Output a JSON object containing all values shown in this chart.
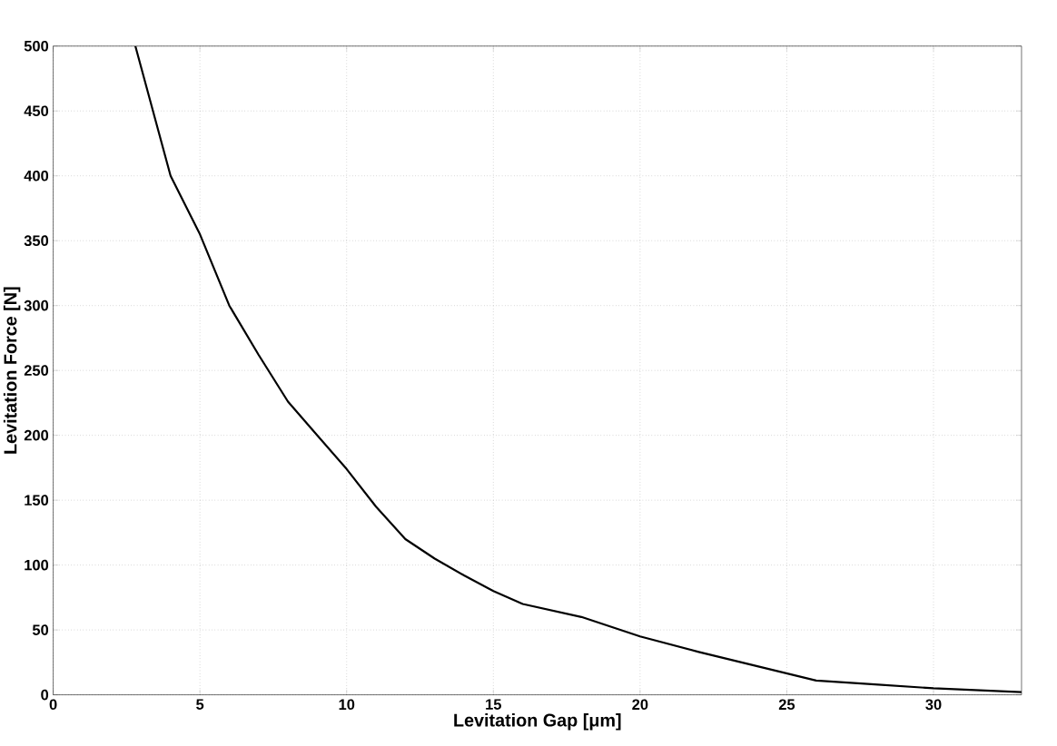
{
  "chart_data": {
    "type": "line",
    "xlabel": "Levitation Gap [μm]",
    "ylabel": "Levitation Force [N]",
    "x": [
      2.8,
      4,
      5,
      6,
      7,
      8,
      9,
      10,
      11,
      12,
      13,
      14,
      15,
      16,
      18,
      20,
      22,
      24,
      26,
      28,
      30,
      33
    ],
    "series": [
      {
        "color": "#000000",
        "values": [
          500,
          400,
          355,
          300,
          262,
          226,
          200,
          174,
          145,
          120,
          105,
          92,
          80,
          70,
          60,
          45,
          33,
          22,
          11,
          8,
          5,
          2
        ]
      }
    ],
    "xlim": [
      0,
      33
    ],
    "ylim": [
      0,
      500
    ],
    "xticks": [
      0,
      5,
      10,
      15,
      20,
      25,
      30
    ],
    "yticks": [
      0,
      50,
      100,
      150,
      200,
      250,
      300,
      350,
      400,
      450,
      500
    ],
    "grid": true,
    "marker": "none",
    "line_style": "solid"
  }
}
